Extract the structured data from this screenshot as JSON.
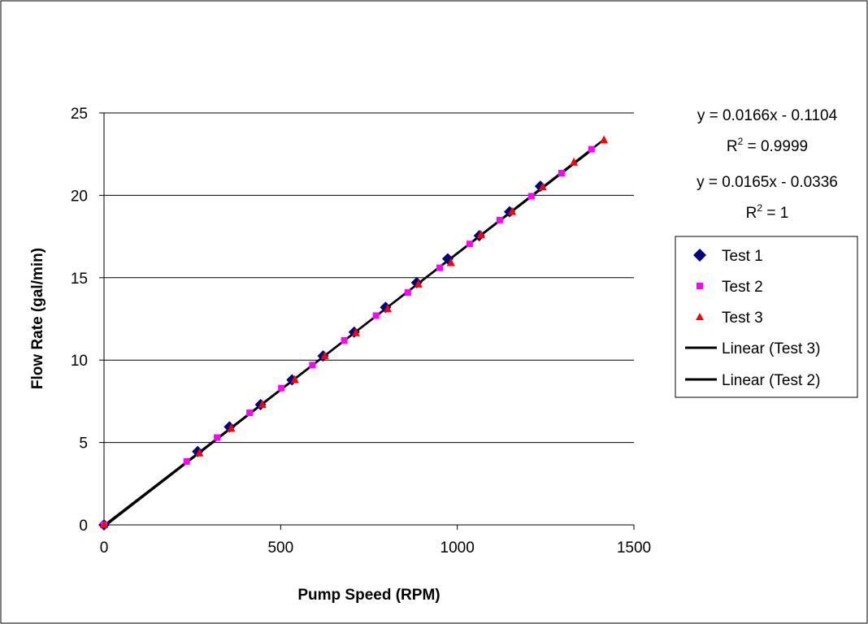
{
  "chart_data": {
    "type": "scatter",
    "title": "",
    "xlabel": "Pump Speed (RPM)",
    "ylabel": "Flow Rate (gal/min)",
    "xlim": [
      0,
      1500
    ],
    "ylim": [
      0,
      25
    ],
    "x_ticks": [
      "0",
      "500",
      "1000",
      "1500"
    ],
    "y_ticks": [
      "0",
      "5",
      "10",
      "15",
      "20",
      "25"
    ],
    "grid": "horizontal",
    "legend_position": "right",
    "series": [
      {
        "name": "Test 1",
        "marker": "diamond",
        "color": "#000080",
        "points": [
          [
            0,
            0
          ],
          [
            265,
            4.45
          ],
          [
            355,
            5.95
          ],
          [
            443,
            7.3
          ],
          [
            532,
            8.8
          ],
          [
            620,
            10.25
          ],
          [
            708,
            11.7
          ],
          [
            797,
            13.2
          ],
          [
            885,
            14.7
          ],
          [
            973,
            16.15
          ],
          [
            1062,
            17.55
          ],
          [
            1148,
            19.0
          ],
          [
            1235,
            20.55
          ]
        ]
      },
      {
        "name": "Test 2",
        "marker": "square",
        "color": "#FF00FF",
        "points": [
          [
            0,
            0
          ],
          [
            234,
            3.85
          ],
          [
            320,
            5.3
          ],
          [
            412,
            6.8
          ],
          [
            502,
            8.3
          ],
          [
            590,
            9.7
          ],
          [
            680,
            11.2
          ],
          [
            770,
            12.7
          ],
          [
            860,
            14.1
          ],
          [
            950,
            15.6
          ],
          [
            1035,
            17.05
          ],
          [
            1120,
            18.5
          ],
          [
            1210,
            19.95
          ],
          [
            1295,
            21.35
          ],
          [
            1380,
            22.8
          ]
        ]
      },
      {
        "name": "Test 3",
        "marker": "triangle",
        "color": "#FF0000",
        "points": [
          [
            0,
            0
          ],
          [
            270,
            4.35
          ],
          [
            360,
            5.85
          ],
          [
            448,
            7.3
          ],
          [
            540,
            8.8
          ],
          [
            625,
            10.25
          ],
          [
            713,
            11.65
          ],
          [
            803,
            13.1
          ],
          [
            890,
            14.6
          ],
          [
            982,
            15.9
          ],
          [
            1067,
            17.6
          ],
          [
            1155,
            19.0
          ],
          [
            1242,
            20.5
          ],
          [
            1330,
            22.0
          ],
          [
            1415,
            23.35
          ]
        ]
      }
    ],
    "trendlines": [
      {
        "name": "Linear (Test 3)",
        "slope": 0.0166,
        "intercept": -0.1104,
        "equation": "y = 0.0166x - 0.1104",
        "r2_prefix": "R",
        "r2_exp": "2",
        "r2_value": " = 0.9999",
        "x_range": [
          0,
          1415
        ],
        "color": "#000000"
      },
      {
        "name": "Linear (Test 2)",
        "slope": 0.0165,
        "intercept": -0.0336,
        "equation": "y = 0.0165x - 0.0336",
        "r2_prefix": "R",
        "r2_exp": "2",
        "r2_value": " = 1",
        "x_range": [
          0,
          1380
        ],
        "color": "#000000"
      }
    ]
  }
}
